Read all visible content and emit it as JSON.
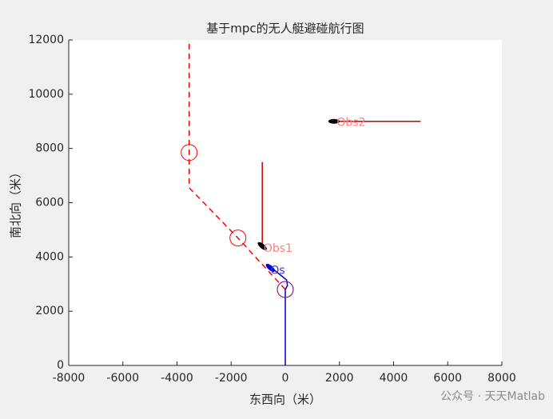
{
  "chart_data": {
    "type": "line",
    "title": "基于mpc的无人艇避碰航行图",
    "xlabel": "东西向（米）",
    "ylabel": "南北向（米）",
    "xlim": [
      -8000,
      8000
    ],
    "xticks": [
      -8000,
      -6000,
      -4000,
      -2000,
      0,
      2000,
      4000,
      6000,
      8000
    ],
    "ylim": [
      0,
      12000
    ],
    "yticks": [
      0,
      2000,
      4000,
      6000,
      8000,
      10000,
      12000
    ],
    "series": [
      {
        "color": "#ff0000",
        "style": "dashed",
        "x": [
          0,
          -1750,
          -3550,
          -3550
        ],
        "y": [
          2800,
          4700,
          6550,
          12000
        ]
      },
      {
        "color": "#0000cc",
        "style": "solid",
        "x": [
          0,
          0,
          80,
          50,
          -200,
          -450
        ],
        "y": [
          0,
          2800,
          2950,
          3150,
          3350,
          3550
        ]
      },
      {
        "color": "#cc0000",
        "style": "solid",
        "x": [
          -850,
          -850
        ],
        "y": [
          4300,
          7500
        ]
      },
      {
        "color": "#cc0000",
        "style": "solid",
        "x": [
          1800,
          5000
        ],
        "y": [
          9000,
          9000
        ]
      },
      {
        "color": "#ff0000",
        "style": "circle",
        "x": [
          0,
          -1750,
          -3550
        ],
        "y": [
          2800,
          4700,
          7850
        ]
      },
      {
        "color": "#7a1fa0",
        "style": "circle",
        "x": [
          0
        ],
        "y": [
          2800
        ]
      },
      {
        "color": "#000000",
        "style": "ship",
        "x": [
          -850,
          1800
        ],
        "y": [
          4400,
          9000
        ]
      },
      {
        "color": "#0000cc",
        "style": "ship",
        "x": [
          -550
        ],
        "y": [
          3600
        ]
      }
    ],
    "annotations": [
      {
        "text": "Obs1",
        "x": -800,
        "y": 4300,
        "color": "#ff7f7f"
      },
      {
        "text": "Obs2",
        "x": 1900,
        "y": 8950,
        "color": "#ff7f7f"
      },
      {
        "text": "Os",
        "x": -550,
        "y": 3500,
        "color": "#3333ff"
      }
    ],
    "watermark": "公众号 · 天天Matlab"
  }
}
